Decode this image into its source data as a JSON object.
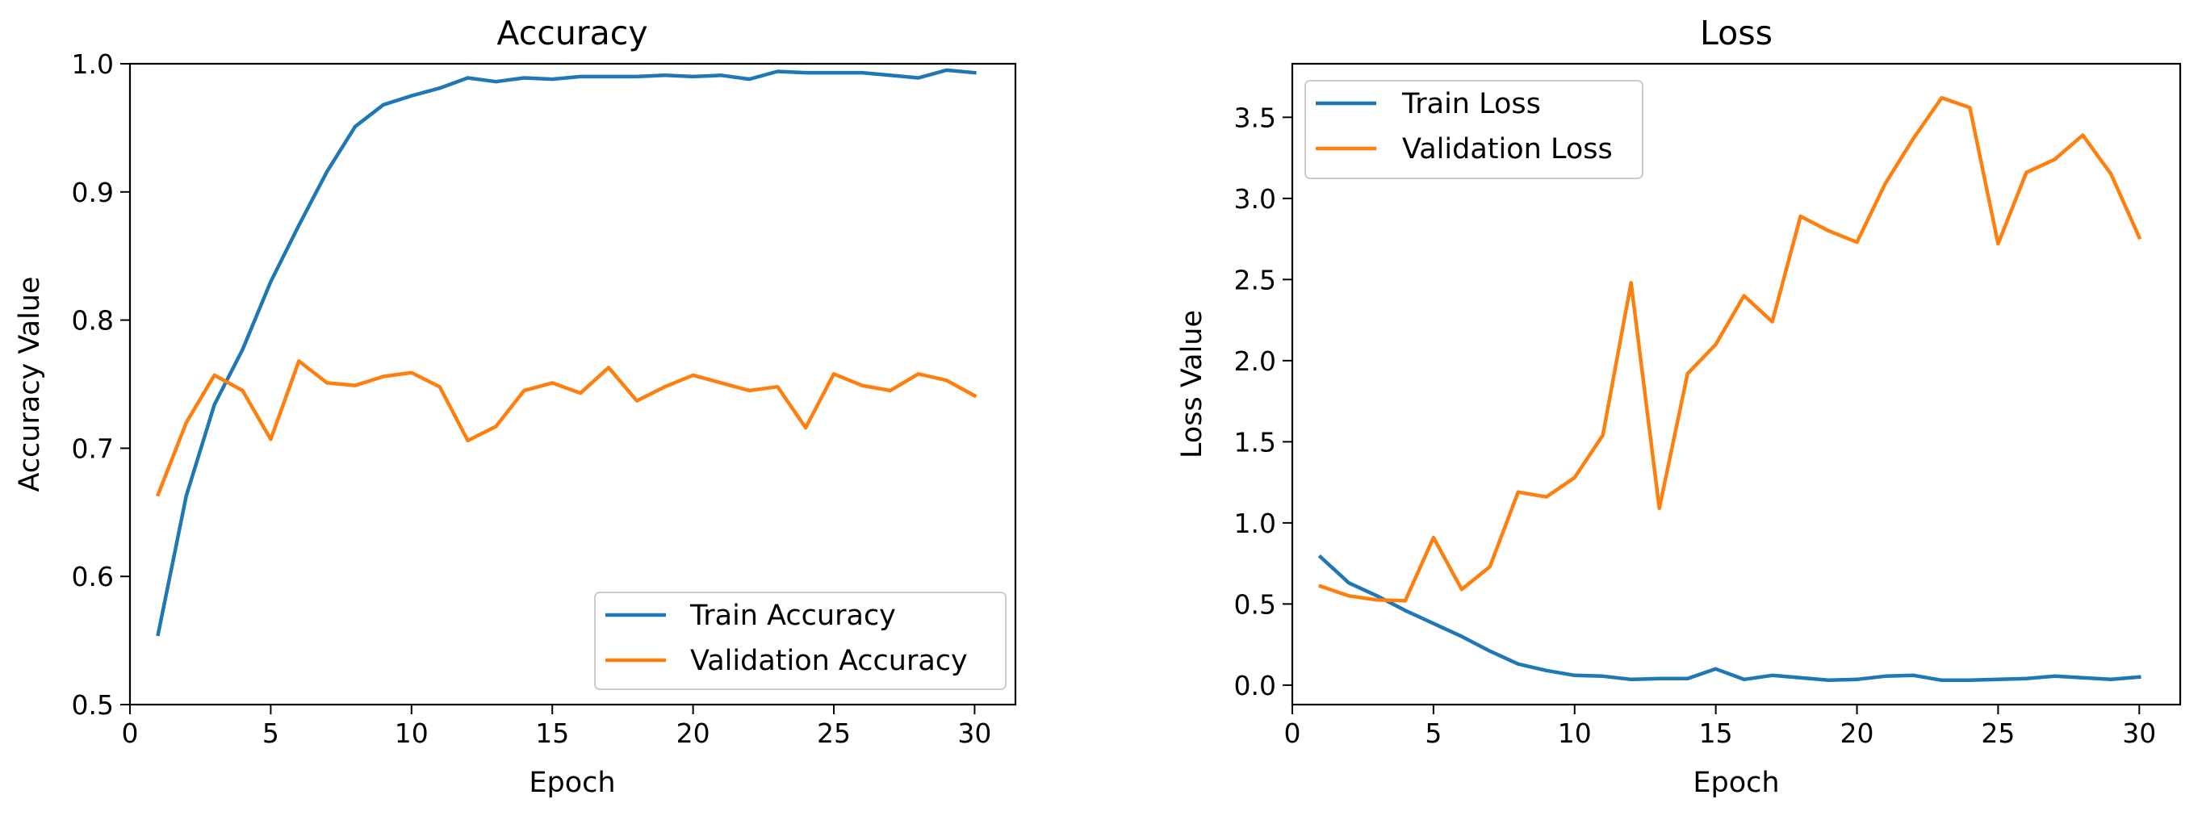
{
  "chart_data": [
    {
      "type": "line",
      "title": "Accuracy",
      "xlabel": "Epoch",
      "ylabel": "Accuracy Value",
      "xlim": [
        0,
        31.45
      ],
      "ylim": [
        0.5,
        1.0
      ],
      "xticks": [
        0,
        5,
        10,
        15,
        20,
        25,
        30
      ],
      "yticks": [
        0.5,
        0.6,
        0.7,
        0.8,
        0.9,
        1.0
      ],
      "legend_position": "lower-right",
      "x": [
        1,
        2,
        3,
        4,
        5,
        6,
        7,
        8,
        9,
        10,
        11,
        12,
        13,
        14,
        15,
        16,
        17,
        18,
        19,
        20,
        21,
        22,
        23,
        24,
        25,
        26,
        27,
        28,
        29,
        30
      ],
      "series": [
        {
          "name": "Train Accuracy",
          "color": "#1f77b4",
          "values": [
            0.555,
            0.663,
            0.734,
            0.777,
            0.83,
            0.874,
            0.916,
            0.951,
            0.968,
            0.975,
            0.981,
            0.989,
            0.986,
            0.989,
            0.988,
            0.99,
            0.99,
            0.99,
            0.991,
            0.99,
            0.991,
            0.988,
            0.994,
            0.993,
            0.993,
            0.993,
            0.991,
            0.989,
            0.995,
            0.993
          ]
        },
        {
          "name": "Validation Accuracy",
          "color": "#ff7f0e",
          "values": [
            0.664,
            0.72,
            0.757,
            0.745,
            0.707,
            0.768,
            0.751,
            0.749,
            0.756,
            0.759,
            0.748,
            0.706,
            0.717,
            0.745,
            0.751,
            0.743,
            0.763,
            0.737,
            0.748,
            0.757,
            0.751,
            0.745,
            0.748,
            0.716,
            0.758,
            0.749,
            0.745,
            0.758,
            0.753,
            0.741
          ]
        }
      ]
    },
    {
      "type": "line",
      "title": "Loss",
      "xlabel": "Epoch",
      "ylabel": "Loss Value",
      "xlim": [
        0,
        31.45
      ],
      "ylim": [
        -0.12,
        3.83
      ],
      "xticks": [
        0,
        5,
        10,
        15,
        20,
        25,
        30
      ],
      "yticks": [
        0.0,
        0.5,
        1.0,
        1.5,
        2.0,
        2.5,
        3.0,
        3.5
      ],
      "legend_position": "upper-left",
      "x": [
        1,
        2,
        3,
        4,
        5,
        6,
        7,
        8,
        9,
        10,
        11,
        12,
        13,
        14,
        15,
        16,
        17,
        18,
        19,
        20,
        21,
        22,
        23,
        24,
        25,
        26,
        27,
        28,
        29,
        30
      ],
      "series": [
        {
          "name": "Train Loss",
          "color": "#1f77b4",
          "values": [
            0.79,
            0.63,
            0.55,
            0.46,
            0.38,
            0.3,
            0.21,
            0.13,
            0.09,
            0.06,
            0.055,
            0.035,
            0.04,
            0.04,
            0.1,
            0.035,
            0.06,
            0.045,
            0.03,
            0.035,
            0.055,
            0.06,
            0.03,
            0.03,
            0.035,
            0.04,
            0.055,
            0.045,
            0.035,
            0.05
          ]
        },
        {
          "name": "Validation Loss",
          "color": "#ff7f0e",
          "values": [
            0.61,
            0.55,
            0.525,
            0.52,
            0.91,
            0.59,
            0.73,
            1.19,
            1.16,
            1.28,
            1.54,
            2.48,
            1.09,
            1.92,
            2.1,
            2.4,
            2.24,
            2.89,
            2.8,
            2.73,
            3.09,
            3.37,
            3.62,
            3.56,
            2.72,
            3.16,
            3.24,
            3.39,
            3.15,
            2.76
          ]
        }
      ]
    }
  ]
}
